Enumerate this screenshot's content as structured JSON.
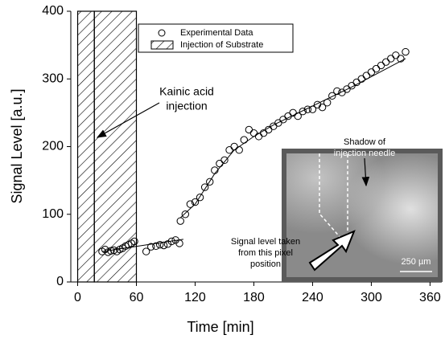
{
  "chart_data": {
    "type": "scatter",
    "x_label": "Time [min]",
    "y_label": "Signal Level [a.u.]",
    "xlim": [
      -7,
      372
    ],
    "ylim": [
      0,
      400
    ],
    "xticks": [
      0,
      60,
      120,
      180,
      240,
      300,
      360
    ],
    "yticks": [
      0,
      100,
      200,
      300,
      400
    ],
    "series": [
      {
        "name": "Experimental Data",
        "color": "#000000",
        "x": [
          25,
          28,
          31,
          34,
          37,
          40,
          43,
          46,
          49,
          52,
          55,
          58,
          70,
          75,
          80,
          84,
          88,
          92,
          96,
          100,
          104,
          105,
          110,
          115,
          120,
          125,
          130,
          135,
          140,
          145,
          150,
          155,
          160,
          165,
          170,
          175,
          180,
          185,
          190,
          195,
          200,
          205,
          210,
          215,
          220,
          225,
          230,
          235,
          240,
          245,
          250,
          255,
          260,
          265,
          270,
          275,
          280,
          285,
          290,
          295,
          300,
          305,
          310,
          315,
          320,
          325,
          330,
          335
        ],
        "values": [
          45,
          48,
          44,
          46,
          47,
          45,
          48,
          50,
          53,
          55,
          57,
          60,
          45,
          52,
          53,
          55,
          54,
          56,
          60,
          62,
          57,
          90,
          100,
          115,
          118,
          125,
          140,
          148,
          165,
          175,
          180,
          195,
          200,
          195,
          210,
          225,
          220,
          215,
          220,
          225,
          230,
          235,
          240,
          245,
          250,
          245,
          252,
          255,
          255,
          262,
          258,
          265,
          275,
          282,
          280,
          285,
          290,
          295,
          300,
          305,
          310,
          315,
          320,
          325,
          330,
          335,
          330,
          340
        ]
      }
    ],
    "fits": [
      {
        "color": "#000000",
        "x": [
          25,
          108
        ],
        "values": [
          45,
          63
        ]
      },
      {
        "color": "#000000",
        "x": [
          105,
          120,
          140,
          160,
          180,
          200,
          240,
          280,
          335
        ],
        "values": [
          95,
          115,
          160,
          195,
          215,
          232,
          260,
          288,
          330
        ]
      }
    ],
    "regions": {
      "name": "Injection of Substrate",
      "spans": [
        [
          0,
          17
        ],
        [
          17,
          60
        ]
      ]
    },
    "annotation": [
      "Kainic acid",
      "injection"
    ],
    "inset": {
      "needle_label": [
        "Shadow of",
        "injection needle"
      ],
      "pixel_label": [
        "Signal level taken",
        "from this pixel",
        "position"
      ],
      "scale_bar": "250 µm"
    }
  }
}
